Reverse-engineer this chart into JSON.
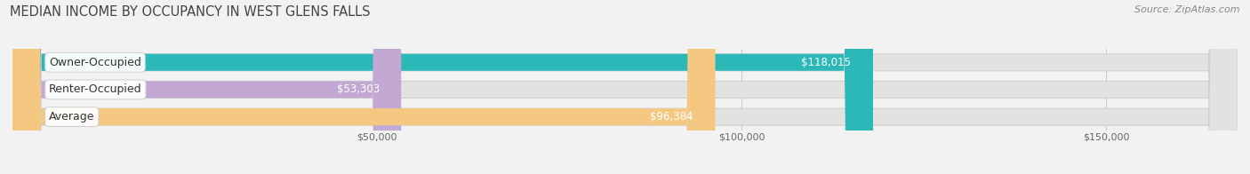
{
  "title": "MEDIAN INCOME BY OCCUPANCY IN WEST GLENS FALLS",
  "source": "Source: ZipAtlas.com",
  "categories": [
    "Owner-Occupied",
    "Renter-Occupied",
    "Average"
  ],
  "values": [
    118015,
    53303,
    96384
  ],
  "labels": [
    "$118,015",
    "$53,303",
    "$96,384"
  ],
  "bar_colors": [
    "#2db8b8",
    "#c4a8d4",
    "#f5c882"
  ],
  "background_color": "#f2f2f2",
  "bar_bg_color": "#e2e2e2",
  "xlim": [
    0,
    168000
  ],
  "xticks": [
    50000,
    100000,
    150000
  ],
  "xticklabels": [
    "$50,000",
    "$100,000",
    "$150,000"
  ],
  "title_fontsize": 10.5,
  "source_fontsize": 8,
  "cat_label_fontsize": 9,
  "val_label_fontsize": 8.5,
  "bar_height": 0.62,
  "figsize": [
    14.06,
    1.96
  ],
  "dpi": 100
}
